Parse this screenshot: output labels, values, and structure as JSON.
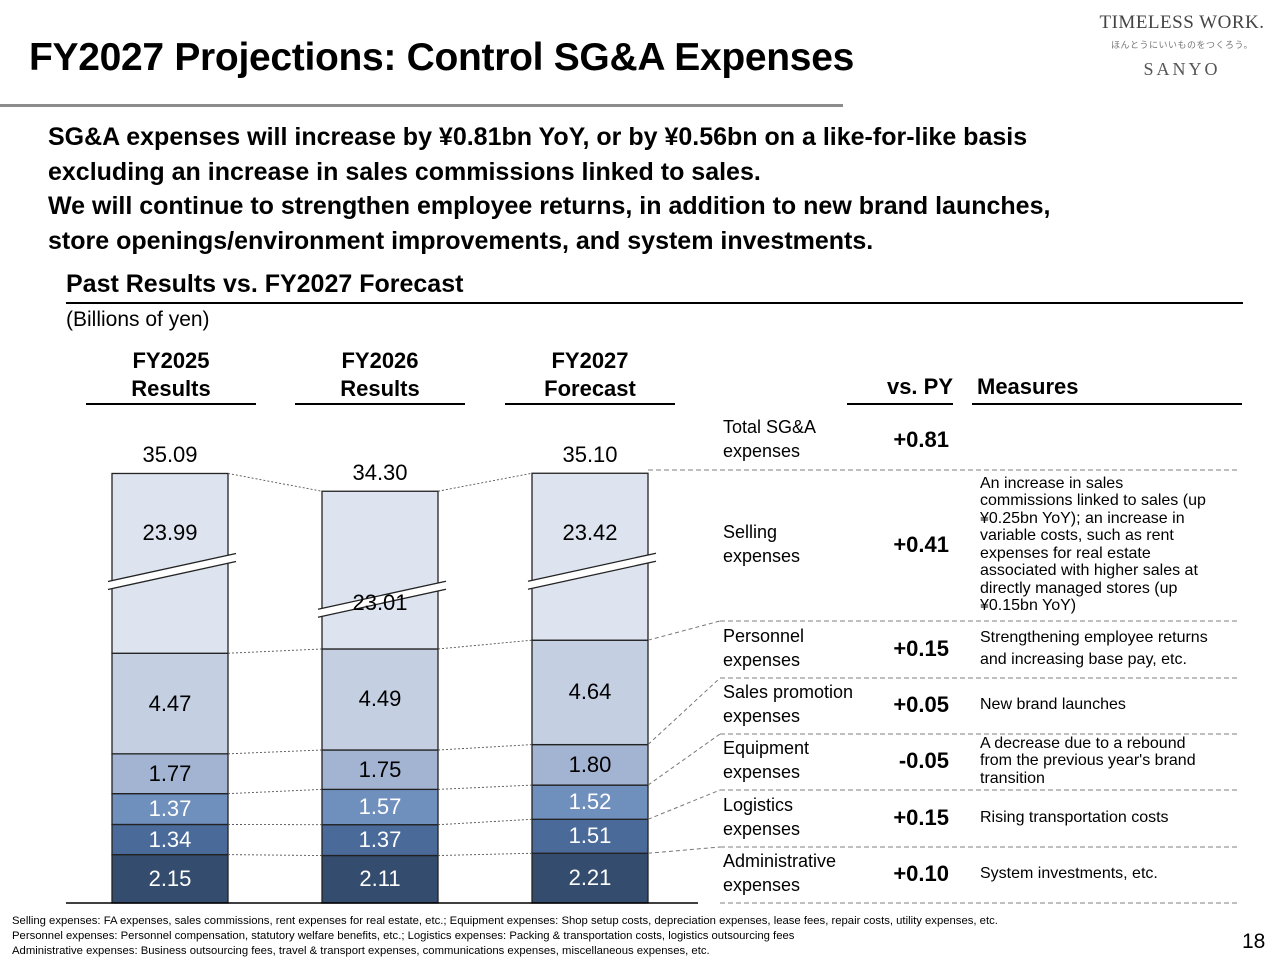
{
  "header": {
    "title": "FY2027 Projections: Control SG&A Expenses",
    "logo": {
      "line1": "TIMELESS WORK.",
      "line2": "ほんとうにいいものをつくろう。",
      "line3": "SANYO"
    }
  },
  "lead": {
    "lines": [
      "SG&A expenses will increase by ¥0.81bn YoY, or by ¥0.56bn on a like-for-like basis",
      "excluding an increase in sales commissions linked to sales.",
      "We will continue to strengthen employee returns, in addition to new brand launches,",
      "store openings/environment improvements, and system investments."
    ]
  },
  "section": {
    "title": "Past Results vs. FY2027 Forecast",
    "unit": "(Billions of yen)"
  },
  "chart_data": {
    "type": "bar",
    "stacked": true,
    "title": "Past Results vs. FY2027 Forecast",
    "ylabel": "(Billions of yen)",
    "axis_break": "Selling expenses segment shown with axis break",
    "categories": [
      {
        "line1": "FY2025",
        "line2": "Results"
      },
      {
        "line1": "FY2026",
        "line2": "Results"
      },
      {
        "line1": "FY2027",
        "line2": "Forecast"
      }
    ],
    "totals": [
      35.09,
      34.3,
      35.1
    ],
    "total_labels": [
      "35.09",
      "34.30",
      "35.10"
    ],
    "series": [
      {
        "name": "Administrative expenses",
        "values": [
          2.15,
          2.11,
          2.21
        ],
        "labels": [
          "2.15",
          "2.11",
          "2.21"
        ],
        "color": "#344c6d",
        "text_color": "#ffffff"
      },
      {
        "name": "Logistics expenses",
        "values": [
          1.34,
          1.37,
          1.51
        ],
        "labels": [
          "1.34",
          "1.37",
          "1.51"
        ],
        "color": "#4a6a99",
        "text_color": "#ffffff"
      },
      {
        "name": "Equipment expenses",
        "values": [
          1.37,
          1.57,
          1.52
        ],
        "labels": [
          "1.37",
          "1.57",
          "1.52"
        ],
        "color": "#6f8fbd",
        "text_color": "#ffffff"
      },
      {
        "name": "Sales promotion expenses",
        "values": [
          1.77,
          1.75,
          1.8
        ],
        "labels": [
          "1.77",
          "1.75",
          "1.80"
        ],
        "color": "#a2b4d2",
        "text_color": "#000000"
      },
      {
        "name": "Personnel expenses",
        "values": [
          4.47,
          4.49,
          4.64
        ],
        "labels": [
          "4.47",
          "4.49",
          "4.64"
        ],
        "color": "#c4d0e2",
        "text_color": "#000000"
      },
      {
        "name": "Selling expenses",
        "values": [
          23.99,
          23.01,
          23.42
        ],
        "labels": [
          "23.99",
          "23.01",
          "23.42"
        ],
        "color": "#dde4ef",
        "text_color": "#000000"
      }
    ]
  },
  "table": {
    "headers": {
      "vs_py": "vs. PY",
      "measures": "Measures"
    },
    "rows": [
      {
        "label_lines": [
          "Total SG&A",
          "expenses"
        ],
        "delta": "+0.81",
        "measure_lines": []
      },
      {
        "label_lines": [
          "Selling",
          "expenses"
        ],
        "delta": "+0.41",
        "measure_lines": [
          "An increase in sales",
          "commissions linked to sales (up",
          "¥0.25bn YoY); an increase in",
          "variable costs, such as rent",
          "expenses for real estate",
          "associated with higher sales at",
          "directly managed stores (up",
          "¥0.15bn YoY)"
        ]
      },
      {
        "label_lines": [
          "Personnel",
          "expenses"
        ],
        "delta": "+0.15",
        "measure_lines": [
          "Strengthening employee returns",
          "and increasing base pay, etc."
        ]
      },
      {
        "label_lines": [
          "Sales promotion",
          "expenses"
        ],
        "delta": "+0.05",
        "measure_lines": [
          "New brand launches"
        ]
      },
      {
        "label_lines": [
          "Equipment",
          "expenses"
        ],
        "delta": "-0.05",
        "measure_lines": [
          "A decrease due to a rebound",
          "from the previous year's brand",
          "transition"
        ]
      },
      {
        "label_lines": [
          "Logistics",
          "expenses"
        ],
        "delta": "+0.15",
        "measure_lines": [
          "Rising transportation costs"
        ]
      },
      {
        "label_lines": [
          "Administrative",
          "expenses"
        ],
        "delta": "+0.10",
        "measure_lines": [
          "System investments, etc."
        ]
      }
    ]
  },
  "notes": [
    "Selling expenses: FA expenses, sales commissions, rent expenses for real estate, etc.; Equipment expenses: Shop setup costs, depreciation expenses, lease fees, repair costs, utility expenses, etc.",
    "Personnel expenses: Personnel compensation, statutory welfare benefits, etc.; Logistics expenses: Packing & transportation costs, logistics outsourcing fees",
    "Administrative expenses: Business outsourcing fees, travel & transport expenses, communications expenses, miscellaneous expenses, etc."
  ],
  "page_number": "18"
}
